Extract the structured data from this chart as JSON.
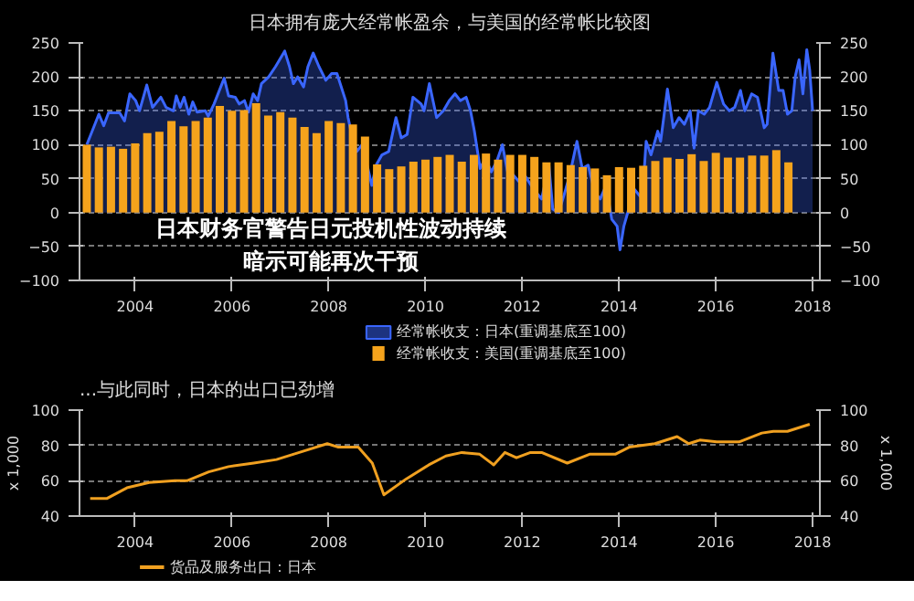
{
  "chart_data": [
    {
      "type": "bar",
      "title": "日本拥有庞大经常帐盈余，与美国的经常帐比较图",
      "xlim": [
        2002.85,
        2018.15
      ],
      "xticks": [
        2004,
        2006,
        2008,
        2010,
        2012,
        2014,
        2016,
        2018
      ],
      "ylim": [
        -100,
        250
      ],
      "yticks": [
        -100,
        -50,
        0,
        50,
        100,
        150,
        200,
        250
      ],
      "y2lim": [
        -100,
        250
      ],
      "y2ticks": [
        -100,
        -50,
        0,
        50,
        100,
        150,
        200,
        250
      ],
      "grid": "y",
      "legend": "bottom",
      "annotations": [
        "日本财务官警告日元投机性波动持续",
        "暗示可能再次干预"
      ],
      "series": [
        {
          "name": "经常帐收支：日本(重调基底至100)",
          "type": "area",
          "color": "#3a66ff",
          "x": [
            2003.0,
            2003.25,
            2003.35,
            2003.45,
            2003.68,
            2003.78,
            2003.89,
            2004.01,
            2004.09,
            2004.24,
            2004.36,
            2004.53,
            2004.64,
            2004.79,
            2004.85,
            2004.93,
            2005.01,
            2005.11,
            2005.19,
            2005.28,
            2005.45,
            2005.51,
            2005.63,
            2005.84,
            2005.93,
            2006.07,
            2006.15,
            2006.26,
            2006.34,
            2006.44,
            2006.53,
            2006.61,
            2006.76,
            2006.9,
            2007.09,
            2007.19,
            2007.27,
            2007.36,
            2007.48,
            2007.57,
            2007.68,
            2007.8,
            2007.94,
            2008.06,
            2008.17,
            2008.35,
            2008.4,
            2008.46,
            2008.58,
            2008.69,
            2008.81,
            2008.89,
            2008.98,
            2009.1,
            2009.24,
            2009.39,
            2009.5,
            2009.62,
            2009.74,
            2009.91,
            2009.97,
            2010.08,
            2010.23,
            2010.37,
            2010.49,
            2010.61,
            2010.72,
            2010.84,
            2010.93,
            2011.01,
            2011.13,
            2011.24,
            2011.36,
            2011.47,
            2011.59,
            2011.71,
            2011.82,
            2011.94,
            2012.05,
            2012.23,
            2012.4,
            2012.55,
            2012.63,
            2012.75,
            2012.86,
            2012.98,
            2013.13,
            2013.24,
            2013.36,
            2013.5,
            2013.61,
            2013.73,
            2013.85,
            2013.96,
            2014.02,
            2014.1,
            2014.22,
            2014.31,
            2014.48,
            2014.56,
            2014.66,
            2014.8,
            2014.86,
            2015.0,
            2015.12,
            2015.24,
            2015.35,
            2015.47,
            2015.55,
            2015.64,
            2015.76,
            2015.87,
            2016.02,
            2016.16,
            2016.28,
            2016.39,
            2016.51,
            2016.6,
            2016.74,
            2016.86,
            2017.0,
            2017.06,
            2017.18,
            2017.3,
            2017.39,
            2017.48,
            2017.57,
            2017.64,
            2017.72,
            2017.8,
            2017.88,
            2017.94,
            2017.98,
            2018.0
          ],
          "values": [
            100,
            145,
            128,
            147,
            147,
            135,
            175,
            165,
            150,
            188,
            155,
            170,
            155,
            150,
            172,
            155,
            170,
            145,
            163,
            148,
            150,
            142,
            160,
            198,
            172,
            170,
            160,
            165,
            148,
            175,
            165,
            190,
            200,
            215,
            238,
            215,
            190,
            200,
            185,
            215,
            235,
            215,
            195,
            205,
            205,
            165,
            140,
            120,
            90,
            100,
            65,
            40,
            70,
            85,
            90,
            140,
            110,
            115,
            170,
            160,
            150,
            190,
            140,
            150,
            165,
            175,
            165,
            170,
            150,
            120,
            65,
            80,
            60,
            75,
            100,
            55,
            55,
            45,
            55,
            35,
            20,
            70,
            5,
            0,
            25,
            55,
            105,
            65,
            70,
            30,
            20,
            40,
            -10,
            -20,
            -55,
            -20,
            10,
            35,
            20,
            105,
            85,
            120,
            105,
            182,
            125,
            140,
            130,
            150,
            95,
            150,
            145,
            155,
            192,
            160,
            150,
            155,
            180,
            150,
            175,
            170,
            125,
            130,
            235,
            180,
            180,
            145,
            150,
            200,
            225,
            175,
            240,
            210,
            170,
            150
          ]
        },
        {
          "name": "经常帐收支：美国(重调基底至100)",
          "color": "#f5a31c",
          "x": [
            2003.0,
            2003.25,
            2003.5,
            2003.75,
            2004.0,
            2004.25,
            2004.5,
            2004.75,
            2005.0,
            2005.25,
            2005.5,
            2005.75,
            2006.0,
            2006.25,
            2006.5,
            2006.75,
            2007.0,
            2007.25,
            2007.5,
            2007.75,
            2008.0,
            2008.25,
            2008.5,
            2008.75,
            2009.0,
            2009.25,
            2009.5,
            2009.75,
            2010.0,
            2010.25,
            2010.5,
            2010.75,
            2011.0,
            2011.25,
            2011.5,
            2011.75,
            2012.0,
            2012.25,
            2012.5,
            2012.75,
            2013.0,
            2013.25,
            2013.5,
            2013.75,
            2014.0,
            2014.25,
            2014.5,
            2014.75,
            2015.0,
            2015.25,
            2015.5,
            2015.75,
            2016.0,
            2016.25,
            2016.5,
            2016.75,
            2017.0,
            2017.25,
            2017.5
          ],
          "values": [
            100,
            96,
            97,
            94,
            102,
            117,
            119,
            135,
            127,
            135,
            140,
            157,
            150,
            151,
            161,
            143,
            148,
            140,
            126,
            117,
            135,
            132,
            130,
            112,
            71,
            64,
            68,
            75,
            78,
            82,
            85,
            75,
            85,
            87,
            78,
            85,
            85,
            82,
            74,
            74,
            70,
            67,
            65,
            55,
            67,
            66,
            69,
            76,
            81,
            79,
            86,
            76,
            88,
            81,
            81,
            84,
            84,
            92,
            74
          ]
        }
      ]
    },
    {
      "type": "line",
      "title": "...与此同时，日本的出口已劲增",
      "ylabel": "x 1,000",
      "y2label": "x 1,000",
      "xlim": [
        2002.85,
        2018.15
      ],
      "xticks": [
        2004,
        2006,
        2008,
        2010,
        2012,
        2014,
        2016,
        2018
      ],
      "ylim": [
        40,
        100
      ],
      "yticks": [
        40,
        60,
        80,
        100
      ],
      "y2lim": [
        40,
        100
      ],
      "y2ticks": [
        40,
        60,
        80,
        100
      ],
      "grid": "y",
      "legend": "bottom",
      "series": [
        {
          "name": "货品及服务出口：日本",
          "color": "#f0a020",
          "x": [
            2003.07,
            2003.42,
            2003.83,
            2004.29,
            2004.82,
            2005.07,
            2005.52,
            2005.93,
            2006.45,
            2006.92,
            2007.39,
            2007.97,
            2008.2,
            2008.61,
            2008.9,
            2009.14,
            2009.6,
            2010.07,
            2010.42,
            2010.75,
            2011.12,
            2011.41,
            2011.64,
            2011.88,
            2012.17,
            2012.4,
            2012.93,
            2013.39,
            2013.92,
            2014.21,
            2014.74,
            2015.2,
            2015.44,
            2015.67,
            2016.02,
            2016.48,
            2016.95,
            2017.19,
            2017.48,
            2017.94
          ],
          "values": [
            50,
            50,
            56,
            59,
            60,
            60,
            65,
            68,
            70,
            72,
            76,
            81,
            79,
            79,
            70,
            52,
            61,
            69,
            74,
            76,
            75,
            69,
            76,
            73,
            76,
            76,
            70,
            75,
            75,
            79,
            81,
            85,
            81,
            83,
            82,
            82,
            87,
            88,
            88,
            92
          ]
        }
      ]
    }
  ]
}
